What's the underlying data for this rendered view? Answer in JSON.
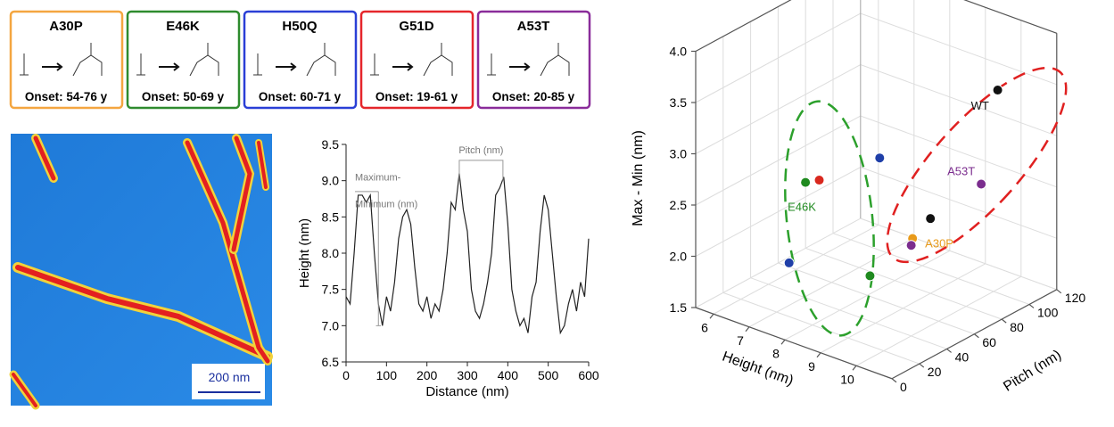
{
  "mutations": [
    {
      "name": "A30P",
      "onset": "Onset: 54-76 y",
      "color": "#f4a640"
    },
    {
      "name": "E46K",
      "onset": "Onset: 50-69 y",
      "color": "#2e8b2e"
    },
    {
      "name": "H50Q",
      "onset": "Onset: 60-71 y",
      "color": "#2a3fd6"
    },
    {
      "name": "G51D",
      "onset": "Onset: 19-61 y",
      "color": "#e5262b"
    },
    {
      "name": "A53T",
      "onset": "Onset: 20-85 y",
      "color": "#8a2c9a"
    }
  ],
  "afm": {
    "scale_label": "200 nm"
  },
  "chart_data": [
    {
      "type": "line",
      "xlabel": "Distance (nm)",
      "ylabel": "Height (nm)",
      "color": "#222",
      "annotations": [
        "Maximum-",
        "Minimum (nm)",
        "Pitch (nm)"
      ],
      "x": [
        0,
        10,
        20,
        30,
        40,
        50,
        60,
        70,
        80,
        90,
        100,
        110,
        120,
        130,
        140,
        150,
        160,
        170,
        180,
        190,
        200,
        210,
        220,
        230,
        240,
        250,
        260,
        270,
        280,
        290,
        300,
        310,
        320,
        330,
        340,
        350,
        360,
        370,
        380,
        390,
        400,
        410,
        420,
        430,
        440,
        450,
        460,
        470,
        480,
        490,
        500,
        510,
        520,
        530,
        540,
        550,
        560,
        570,
        580,
        590,
        600
      ],
      "values": [
        7.4,
        7.3,
        8.0,
        8.8,
        8.8,
        8.7,
        8.8,
        8.0,
        7.3,
        7.0,
        7.4,
        7.2,
        7.6,
        8.2,
        8.5,
        8.6,
        8.4,
        7.8,
        7.3,
        7.2,
        7.4,
        7.1,
        7.3,
        7.2,
        7.5,
        8.0,
        8.7,
        8.6,
        9.1,
        8.6,
        8.3,
        7.5,
        7.2,
        7.1,
        7.3,
        7.6,
        8.0,
        8.8,
        8.9,
        9.05,
        8.4,
        7.5,
        7.2,
        7.0,
        7.1,
        6.9,
        7.4,
        7.6,
        8.3,
        8.8,
        8.6,
        8.0,
        7.4,
        6.9,
        7.0,
        7.3,
        7.5,
        7.2,
        7.6,
        7.4,
        8.2
      ],
      "xlim": [
        0,
        600
      ],
      "xticks": [
        0,
        100,
        200,
        300,
        400,
        500,
        600
      ],
      "ylim": [
        6.5,
        9.5
      ],
      "yticks": [
        6.5,
        {
          "value": 7,
          "label": "7.0"
        },
        7.5,
        {
          "value": 8,
          "label": "8.0"
        },
        8.5,
        {
          "value": 9,
          "label": "9.0"
        },
        9.5
      ]
    },
    {
      "type": "scatter3d",
      "xlabel": "Height (nm)",
      "ylabel": "Pitch (nm)",
      "zlabel": "Max - Min (nm)",
      "grid": true,
      "xlim": [
        5.5,
        11
      ],
      "xticks": [
        6,
        7,
        8,
        9,
        10
      ],
      "ylim": [
        0,
        120
      ],
      "yticks": [
        0,
        20,
        40,
        60,
        80,
        100,
        120
      ],
      "zlim": [
        1.5,
        4
      ],
      "zticks": [
        1.5,
        {
          "value": 2,
          "label": "2.0"
        },
        2.5,
        {
          "value": 3,
          "label": "3.0"
        },
        3.5,
        {
          "value": 4,
          "label": "4.0"
        }
      ],
      "points": [
        {
          "label": "WT",
          "color": "#111111",
          "x": 10.5,
          "y": 90,
          "z": 3.6
        },
        {
          "label": "A53T",
          "color": "#7b2d8e",
          "x": 10.5,
          "y": 78,
          "z": 2.77
        },
        {
          "label": "E46K",
          "color": "#1f8a1f",
          "x": 7.5,
          "y": 28,
          "z": 2.77
        },
        {
          "label": null,
          "color": "#d9281e",
          "x": 7.5,
          "y": 38,
          "z": 2.72
        },
        {
          "label": null,
          "color": "#1f3fa8",
          "x": 7,
          "y": 95,
          "z": 2.46
        },
        {
          "label": null,
          "color": "#1f3fa8",
          "x": 6,
          "y": 55,
          "z": 1.6
        },
        {
          "label": null,
          "color": "#1f8a1f",
          "x": 9,
          "y": 36,
          "z": 1.99
        },
        {
          "label": null,
          "color": "#111111",
          "x": 9,
          "y": 80,
          "z": 2.23
        },
        {
          "label": "A30P",
          "color": "#e89a1a",
          "x": 9,
          "y": 67,
          "z": 2.13
        },
        {
          "label": null,
          "color": "#7b2d8e",
          "x": 9,
          "y": 66,
          "z": 2.07
        }
      ]
    }
  ]
}
